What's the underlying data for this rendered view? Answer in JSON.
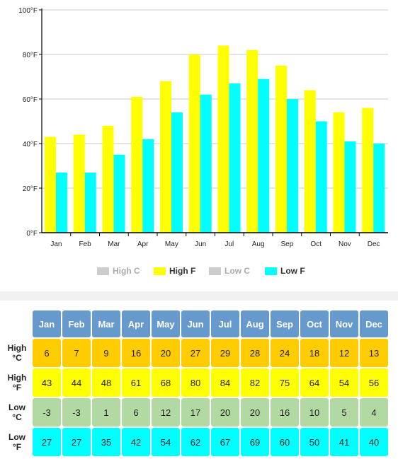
{
  "chart_data": {
    "type": "bar",
    "categories": [
      "Jan",
      "Feb",
      "Mar",
      "Apr",
      "May",
      "Jun",
      "Jul",
      "Aug",
      "Sep",
      "Oct",
      "Nov",
      "Dec"
    ],
    "series": [
      {
        "name": "High F",
        "color": "#ffff00",
        "values": [
          43,
          44,
          48,
          61,
          68,
          80,
          84,
          82,
          75,
          64,
          54,
          56
        ]
      },
      {
        "name": "Low F",
        "color": "#00ffff",
        "values": [
          27,
          27,
          35,
          42,
          54,
          62,
          67,
          69,
          60,
          50,
          41,
          40
        ]
      }
    ],
    "yticks": [
      "0°F",
      "20°F",
      "40°F",
      "60°F",
      "80°F",
      "100°F"
    ],
    "ytick_values": [
      0,
      20,
      40,
      60,
      80,
      100
    ],
    "ylim": [
      0,
      100
    ],
    "grid": true,
    "legend_position": "bottom"
  },
  "legend": [
    {
      "label": "High C",
      "color": "#cccccc",
      "text_color": "#aaaaaa"
    },
    {
      "label": "High F",
      "color": "#ffff00",
      "text_color": "#333333"
    },
    {
      "label": "Low C",
      "color": "#cccccc",
      "text_color": "#aaaaaa"
    },
    {
      "label": "Low F",
      "color": "#00ffff",
      "text_color": "#333333"
    }
  ],
  "table": {
    "header_color": "#6699cc",
    "months": [
      "Jan",
      "Feb",
      "Mar",
      "Apr",
      "May",
      "Jun",
      "Jul",
      "Aug",
      "Sep",
      "Oct",
      "Nov",
      "Dec"
    ],
    "rows": [
      {
        "label_top": "High",
        "label_bottom": "°C",
        "color": "#ffcc00",
        "values": [
          "6",
          "7",
          "9",
          "16",
          "20",
          "27",
          "29",
          "28",
          "24",
          "18",
          "12",
          "13"
        ]
      },
      {
        "label_top": "High",
        "label_bottom": "°F",
        "color": "#ffff00",
        "values": [
          "43",
          "44",
          "48",
          "61",
          "68",
          "80",
          "84",
          "82",
          "75",
          "64",
          "54",
          "56"
        ]
      },
      {
        "label_top": "Low",
        "label_bottom": "°C",
        "color": "#b3d9a3",
        "values": [
          "-3",
          "-3",
          "1",
          "6",
          "12",
          "17",
          "20",
          "20",
          "16",
          "10",
          "5",
          "4"
        ]
      },
      {
        "label_top": "Low",
        "label_bottom": "°F",
        "color": "#00ffff",
        "values": [
          "27",
          "27",
          "35",
          "42",
          "54",
          "62",
          "67",
          "69",
          "60",
          "50",
          "41",
          "40"
        ]
      }
    ]
  }
}
